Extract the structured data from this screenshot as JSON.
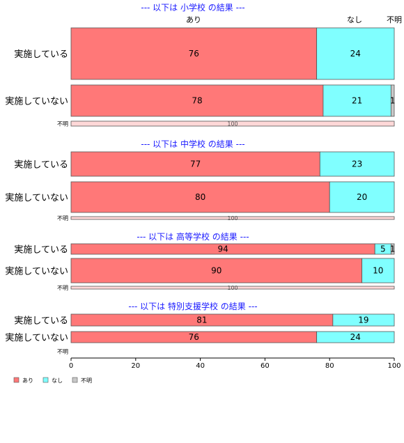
{
  "chart_data": {
    "type": "bar",
    "orientation": "horizontal",
    "stacked": true,
    "xlim": [
      0,
      100
    ],
    "xticks": [
      0,
      20,
      40,
      60,
      80,
      100
    ],
    "column_headers": [
      "あり",
      "なし",
      "不明"
    ],
    "series": [
      {
        "name": "あり",
        "color": "#ff7878"
      },
      {
        "name": "なし",
        "color": "#80ffff"
      },
      {
        "name": "不明",
        "color": "#c8c8c8"
      }
    ],
    "panels": [
      {
        "title": "--- 以下は 小学校 の結果 ---",
        "rows": [
          {
            "label": "実施している",
            "values": [
              76,
              24,
              0
            ]
          },
          {
            "label": "実施していない",
            "values": [
              78,
              21,
              1
            ]
          },
          {
            "label": "不明",
            "values": [
              100,
              0,
              0
            ]
          }
        ]
      },
      {
        "title": "--- 以下は 中学校 の結果 ---",
        "rows": [
          {
            "label": "実施している",
            "values": [
              77,
              23,
              0
            ]
          },
          {
            "label": "実施していない",
            "values": [
              80,
              20,
              0
            ]
          },
          {
            "label": "不明",
            "values": [
              100,
              0,
              0
            ]
          }
        ]
      },
      {
        "title": "--- 以下は 高等学校 の結果 ---",
        "rows": [
          {
            "label": "実施している",
            "values": [
              94,
              5,
              1
            ]
          },
          {
            "label": "実施していない",
            "values": [
              90,
              10,
              0
            ]
          },
          {
            "label": "不明",
            "values": [
              100,
              0,
              0
            ]
          }
        ]
      },
      {
        "title": "--- 以下は 特別支援学校 の結果 ---",
        "rows": [
          {
            "label": "実施している",
            "values": [
              81,
              19,
              0
            ]
          },
          {
            "label": "実施していない",
            "values": [
              76,
              24,
              0
            ]
          },
          {
            "label": "不明",
            "values": []
          }
        ]
      }
    ],
    "legend": [
      "あり",
      "なし",
      "不明"
    ],
    "legend_position": "bottom-left"
  }
}
